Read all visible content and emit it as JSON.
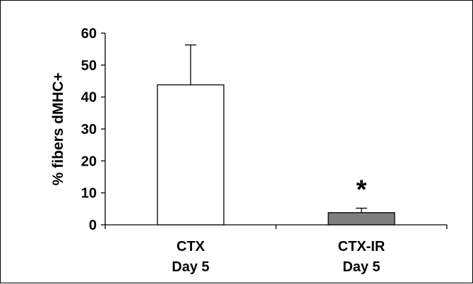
{
  "chart_data": {
    "type": "bar",
    "categories": [
      {
        "line1": "CTX",
        "line2": "Day 5"
      },
      {
        "line1": "CTX-IR",
        "line2": "Day 5"
      }
    ],
    "values": [
      43.8,
      3.8
    ],
    "error_upper": [
      56.3,
      5.2
    ],
    "bar_colors": [
      "#ffffff",
      "#7f7f7f"
    ],
    "annotations": [
      "",
      "*"
    ],
    "ylabel": "% fibers dMHC+",
    "ylim": [
      0,
      60
    ],
    "yticks": [
      0,
      10,
      20,
      30,
      40,
      50,
      60
    ],
    "grid": false,
    "legend": "none"
  }
}
